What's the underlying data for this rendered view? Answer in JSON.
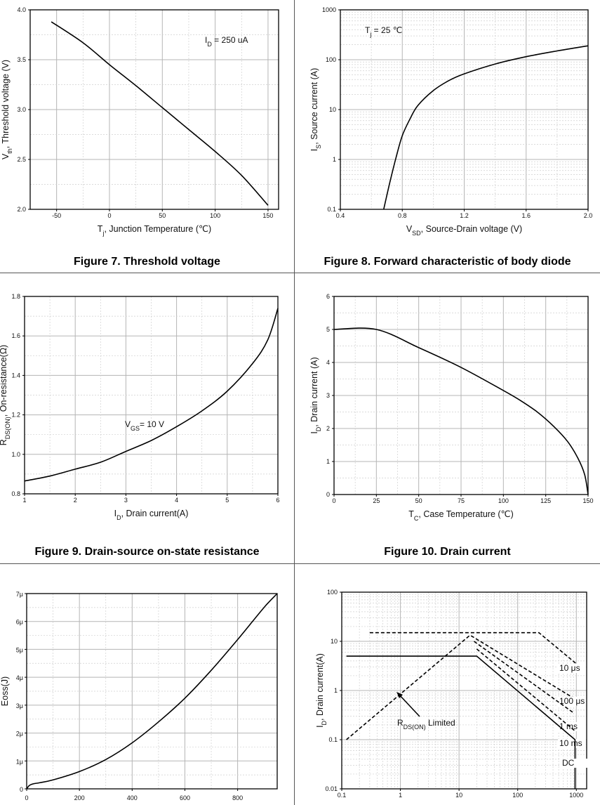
{
  "charts": [
    {
      "id": "fig7",
      "caption": "Figure 7. Threshold voltage",
      "chart_data": {
        "type": "line",
        "title": "Figure 7. Threshold voltage",
        "xscale": "linear",
        "yscale": "linear",
        "xlim": [
          -75,
          160
        ],
        "ylim": [
          2.0,
          4.0
        ],
        "xticks": [
          -50,
          0,
          50,
          100,
          150
        ],
        "yticks": [
          2.0,
          2.5,
          3.0,
          3.5,
          4.0
        ],
        "xtick_labels": [
          "-50",
          "0",
          "50",
          "100",
          "150"
        ],
        "ytick_labels": [
          "2.0",
          "2.5",
          "3.0",
          "3.5",
          "4.0"
        ],
        "xlabel": {
          "main": "T",
          "sub": "j",
          "rest": ", Junction Temperature (℃)"
        },
        "ylabel": {
          "main": "V",
          "sub": "th",
          "rest": ", Threshold voltage (V)"
        },
        "annotations": [
          {
            "main": "I",
            "sub": "D",
            "rest": " = 250 uA"
          }
        ],
        "series": [
          {
            "name": "Vth",
            "x": [
              -55,
              -25,
              0,
              25,
              50,
              75,
              100,
              125,
              150
            ],
            "y": [
              3.88,
              3.67,
              3.45,
              3.24,
              3.02,
              2.8,
              2.58,
              2.34,
              2.04
            ]
          }
        ]
      }
    },
    {
      "id": "fig8",
      "caption": "Figure 8. Forward characteristic of body diode",
      "chart_data": {
        "type": "line",
        "title": "Figure 8. Forward characteristic of body diode",
        "xscale": "linear",
        "yscale": "log",
        "xlim": [
          0.4,
          2.0
        ],
        "ylim": [
          0.1,
          1000
        ],
        "xticks": [
          0.4,
          0.8,
          1.2,
          1.6,
          2.0
        ],
        "yticks": [
          0.1,
          1,
          10,
          100,
          1000
        ],
        "xtick_labels": [
          "0.4",
          "0.8",
          "1.2",
          "1.6",
          "2.0"
        ],
        "ytick_labels": [
          "0.1",
          "1",
          "10",
          "100",
          "1000"
        ],
        "xlabel": {
          "main": "V",
          "sub": "SD",
          "rest": ", Source-Drain voltage (V)"
        },
        "ylabel": {
          "main": "I",
          "sub": "S",
          "rest": ", Source current (A)"
        },
        "annotations": [
          {
            "main": "T",
            "sub": "j",
            "rest": " = 25 ℃"
          }
        ],
        "series": [
          {
            "name": "Is",
            "x": [
              0.68,
              0.72,
              0.76,
              0.8,
              0.85,
              0.9,
              1.0,
              1.1,
              1.2,
              1.4,
              1.6,
              1.8,
              2.0
            ],
            "y": [
              0.1,
              0.35,
              1.1,
              3.0,
              6.5,
              12,
              24,
              38,
              52,
              82,
              115,
              150,
              190
            ]
          }
        ]
      }
    },
    {
      "id": "fig9",
      "caption": "Figure 9. Drain-source on-state resistance",
      "chart_data": {
        "type": "line",
        "title": "Figure 9. Drain-source on-state resistance",
        "xscale": "linear",
        "yscale": "linear",
        "xlim": [
          1,
          6
        ],
        "ylim": [
          0.8,
          1.8
        ],
        "xticks": [
          1,
          2,
          3,
          4,
          5,
          6
        ],
        "yticks": [
          0.8,
          1.0,
          1.2,
          1.4,
          1.6,
          1.8
        ],
        "xtick_labels": [
          "1",
          "2",
          "3",
          "4",
          "5",
          "6"
        ],
        "ytick_labels": [
          "0.8",
          "1.0",
          "1.2",
          "1.4",
          "1.6",
          "1.8"
        ],
        "xlabel": {
          "main": "I",
          "sub": "D",
          "rest": ", Drain current(A)"
        },
        "ylabel": {
          "main": "R",
          "sub": "DS(ON)",
          "rest": ", On-resistance(Ω)"
        },
        "annotations": [
          {
            "main": "V",
            "sub": "GS",
            "rest": "= 10 V"
          }
        ],
        "series": [
          {
            "name": "Rds(on)",
            "x": [
              1,
              1.5,
              2,
              2.5,
              3,
              3.5,
              4,
              4.5,
              5,
              5.5,
              5.8,
              6
            ],
            "y": [
              0.865,
              0.89,
              0.925,
              0.96,
              1.015,
              1.07,
              1.14,
              1.22,
              1.32,
              1.46,
              1.58,
              1.74
            ]
          }
        ]
      }
    },
    {
      "id": "fig10",
      "caption": "Figure 10. Drain current",
      "chart_data": {
        "type": "line",
        "title": "Figure 10. Drain current",
        "xscale": "linear",
        "yscale": "linear",
        "xlim": [
          0,
          150
        ],
        "ylim": [
          0,
          6
        ],
        "xticks": [
          0,
          25,
          50,
          75,
          100,
          125,
          150
        ],
        "yticks": [
          0,
          1,
          2,
          3,
          4,
          5,
          6
        ],
        "xtick_labels": [
          "0",
          "25",
          "50",
          "75",
          "100",
          "125",
          "150"
        ],
        "ytick_labels": [
          "0",
          "1",
          "2",
          "3",
          "4",
          "5",
          "6"
        ],
        "xlabel": {
          "main": "T",
          "sub": "C",
          "rest": ", Case Temperature (℃)"
        },
        "ylabel": {
          "main": "I",
          "sub": "D",
          "rest": ", Drain current (A)"
        },
        "annotations": [],
        "series": [
          {
            "name": "Id",
            "x": [
              0,
              25,
              50,
              75,
              100,
              110,
              120,
              130,
              138,
              144,
              148,
              150
            ],
            "y": [
              5.0,
              5.0,
              4.45,
              3.85,
              3.15,
              2.85,
              2.5,
              2.05,
              1.6,
              1.1,
              0.6,
              0.0
            ]
          }
        ]
      }
    },
    {
      "id": "fig11",
      "caption": "",
      "chart_data": {
        "type": "line",
        "xscale": "linear",
        "yscale": "linear",
        "xlim": [
          0,
          950
        ],
        "ylim": [
          0,
          7
        ],
        "xticks": [
          0,
          200,
          400,
          600,
          800
        ],
        "yticks": [
          0,
          1,
          2,
          3,
          4,
          5,
          6,
          7
        ],
        "xtick_labels": [
          "0",
          "200",
          "400",
          "600",
          "800"
        ],
        "ytick_labels": [
          "0",
          "1μ",
          "2μ",
          "3μ",
          "4μ",
          "5μ",
          "6μ",
          "7μ"
        ],
        "xlabel": {
          "main": "",
          "sub": "",
          "rest": ""
        },
        "ylabel": {
          "main": "Eoss(J)",
          "sub": "",
          "rest": ""
        },
        "annotations": [],
        "series": [
          {
            "name": "Eoss",
            "unit": "μJ",
            "x": [
              0,
              10,
              25,
              50,
              100,
              200,
              300,
              400,
              500,
              600,
              700,
              800,
              900,
              950
            ],
            "y": [
              0.0,
              0.12,
              0.18,
              0.22,
              0.32,
              0.62,
              1.05,
              1.65,
              2.4,
              3.25,
              4.25,
              5.35,
              6.5,
              7.0
            ]
          }
        ]
      }
    },
    {
      "id": "fig12",
      "caption": "",
      "chart_data": {
        "type": "line",
        "xscale": "log",
        "yscale": "log",
        "xlim": [
          0.1,
          1500
        ],
        "ylim": [
          0.01,
          100
        ],
        "xticks": [
          0.1,
          1,
          10,
          100,
          1000
        ],
        "yticks": [
          0.01,
          0.1,
          1,
          10,
          100
        ],
        "xtick_labels": [
          "0.1",
          "1",
          "10",
          "100",
          "1000"
        ],
        "ytick_labels": [
          "0.01",
          "0.1",
          "1",
          "10",
          "100"
        ],
        "xlabel": {
          "main": "",
          "sub": "",
          "rest": ""
        },
        "ylabel": {
          "main": "I",
          "sub": "D",
          "rest": ", Drain current(A)"
        },
        "annotations": [
          {
            "main": "R",
            "sub": "DS(ON)",
            "rest": " Limited"
          }
        ],
        "series": [
          {
            "name": "10 μs",
            "dash": true,
            "x": [
              0.3,
              17,
              230,
              1000
            ],
            "y": [
              15,
              15,
              15,
              3.5
            ]
          },
          {
            "name": "100 μs",
            "dash": true,
            "x": [
              16,
              900
            ],
            "y": [
              13,
              0.7
            ]
          },
          {
            "name": "1 ms",
            "dash": true,
            "x": [
              18,
              900
            ],
            "y": [
              10,
              0.35
            ]
          },
          {
            "name": "10 ms",
            "dash": true,
            "x": [
              20,
              950
            ],
            "y": [
              7,
              0.15
            ]
          },
          {
            "name": "RDS(ON) Limited",
            "dash": true,
            "x": [
              0.12,
              15
            ],
            "y": [
              0.1,
              13
            ]
          },
          {
            "name": "DC",
            "dash": false,
            "x": [
              0.12,
              20,
              950,
              950
            ],
            "y": [
              5,
              5,
              0.1,
              0.01
            ]
          }
        ]
      }
    }
  ]
}
